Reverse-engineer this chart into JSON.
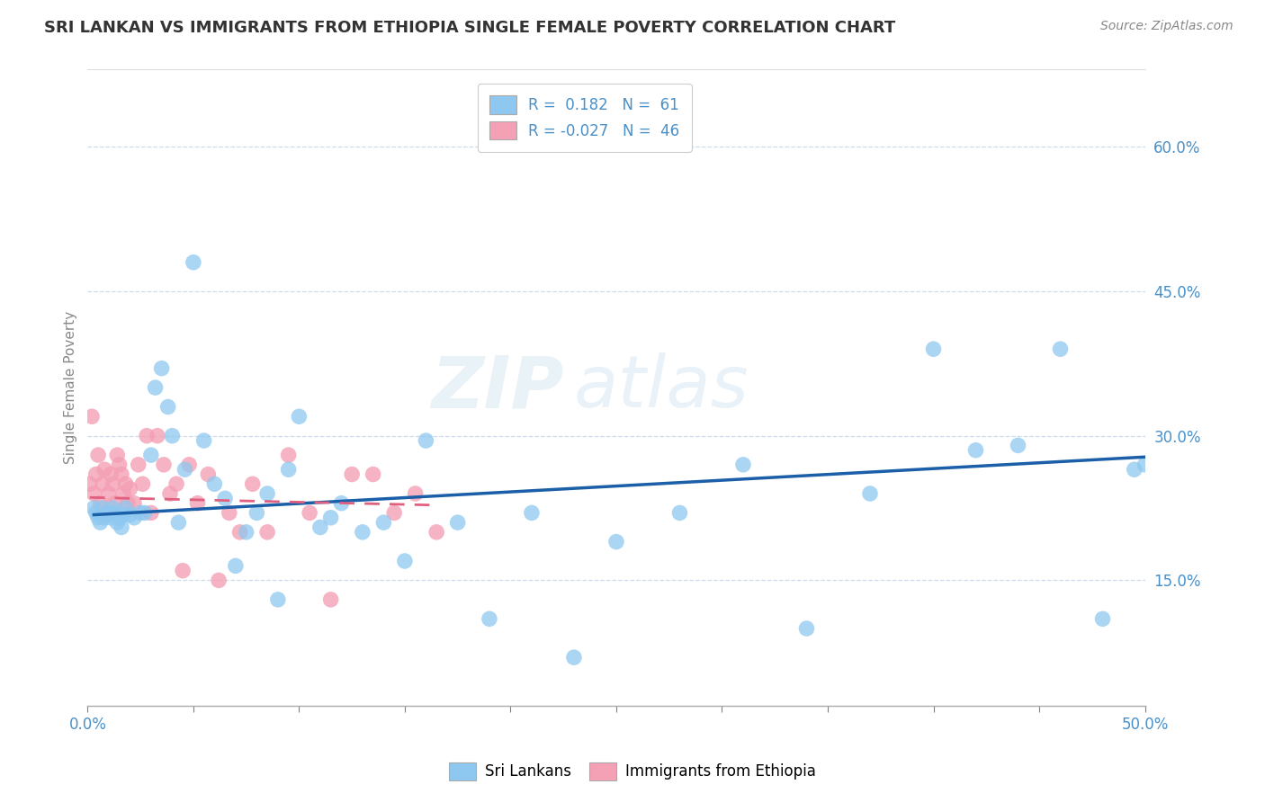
{
  "title": "SRI LANKAN VS IMMIGRANTS FROM ETHIOPIA SINGLE FEMALE POVERTY CORRELATION CHART",
  "source": "Source: ZipAtlas.com",
  "ylabel": "Single Female Poverty",
  "y_ticks": [
    "15.0%",
    "30.0%",
    "45.0%",
    "60.0%"
  ],
  "y_tick_vals": [
    0.15,
    0.3,
    0.45,
    0.6
  ],
  "xlim": [
    0.0,
    0.5
  ],
  "ylim": [
    0.02,
    0.68
  ],
  "color_blue": "#8EC8F0",
  "color_pink": "#F4A0B5",
  "line_blue": "#1A5FA8",
  "line_pink": "#E06080",
  "watermark_zip": "ZIP",
  "watermark_atlas": "atlas",
  "sri_lankans_x": [
    0.003,
    0.004,
    0.005,
    0.006,
    0.007,
    0.008,
    0.009,
    0.01,
    0.011,
    0.012,
    0.013,
    0.014,
    0.015,
    0.016,
    0.017,
    0.018,
    0.02,
    0.022,
    0.025,
    0.027,
    0.03,
    0.032,
    0.035,
    0.038,
    0.04,
    0.043,
    0.046,
    0.05,
    0.055,
    0.06,
    0.065,
    0.07,
    0.075,
    0.08,
    0.085,
    0.09,
    0.095,
    0.1,
    0.11,
    0.115,
    0.12,
    0.13,
    0.14,
    0.15,
    0.16,
    0.175,
    0.19,
    0.21,
    0.23,
    0.25,
    0.28,
    0.31,
    0.34,
    0.37,
    0.4,
    0.42,
    0.44,
    0.46,
    0.48,
    0.495,
    0.5
  ],
  "sri_lankans_y": [
    0.225,
    0.22,
    0.215,
    0.21,
    0.225,
    0.215,
    0.218,
    0.22,
    0.215,
    0.225,
    0.22,
    0.21,
    0.215,
    0.205,
    0.218,
    0.225,
    0.218,
    0.215,
    0.22,
    0.22,
    0.28,
    0.35,
    0.37,
    0.33,
    0.3,
    0.21,
    0.265,
    0.48,
    0.295,
    0.25,
    0.235,
    0.165,
    0.2,
    0.22,
    0.24,
    0.13,
    0.265,
    0.32,
    0.205,
    0.215,
    0.23,
    0.2,
    0.21,
    0.17,
    0.295,
    0.21,
    0.11,
    0.22,
    0.07,
    0.19,
    0.22,
    0.27,
    0.1,
    0.24,
    0.39,
    0.285,
    0.29,
    0.39,
    0.11,
    0.265,
    0.27
  ],
  "ethiopia_x": [
    0.001,
    0.002,
    0.003,
    0.004,
    0.005,
    0.006,
    0.007,
    0.008,
    0.009,
    0.01,
    0.011,
    0.012,
    0.013,
    0.014,
    0.015,
    0.016,
    0.017,
    0.018,
    0.019,
    0.02,
    0.022,
    0.024,
    0.026,
    0.028,
    0.03,
    0.033,
    0.036,
    0.039,
    0.042,
    0.045,
    0.048,
    0.052,
    0.057,
    0.062,
    0.067,
    0.072,
    0.078,
    0.085,
    0.095,
    0.105,
    0.115,
    0.125,
    0.135,
    0.145,
    0.155,
    0.165
  ],
  "ethiopia_y": [
    0.25,
    0.32,
    0.24,
    0.26,
    0.28,
    0.23,
    0.25,
    0.265,
    0.22,
    0.24,
    0.26,
    0.25,
    0.23,
    0.28,
    0.27,
    0.26,
    0.24,
    0.25,
    0.23,
    0.245,
    0.23,
    0.27,
    0.25,
    0.3,
    0.22,
    0.3,
    0.27,
    0.24,
    0.25,
    0.16,
    0.27,
    0.23,
    0.26,
    0.15,
    0.22,
    0.2,
    0.25,
    0.2,
    0.28,
    0.22,
    0.13,
    0.26,
    0.26,
    0.22,
    0.24,
    0.2
  ],
  "blue_line_x": [
    0.003,
    0.5
  ],
  "blue_line_y": [
    0.218,
    0.278
  ],
  "pink_line_x": [
    0.001,
    0.165
  ],
  "pink_line_y": [
    0.236,
    0.228
  ]
}
